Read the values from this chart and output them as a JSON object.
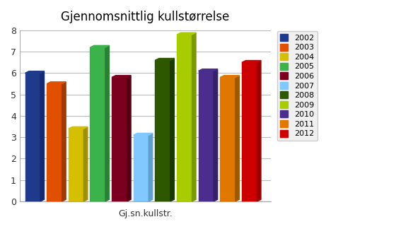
{
  "title": "Gjennomsnittlig kullstørrelse",
  "xlabel": "Gj.sn.kullstr.",
  "years": [
    2002,
    2003,
    2004,
    2005,
    2006,
    2007,
    2008,
    2009,
    2010,
    2011,
    2012
  ],
  "values": [
    6.0,
    5.5,
    3.4,
    7.2,
    5.8,
    3.1,
    6.6,
    7.8,
    6.1,
    5.8,
    6.5
  ],
  "colors": [
    "#1F3A8A",
    "#E05000",
    "#D4C000",
    "#3CB34A",
    "#7B0020",
    "#80C8FF",
    "#2E5800",
    "#A8CC00",
    "#4B2D8E",
    "#E07800",
    "#CC0000"
  ],
  "dark_colors": [
    "#152970",
    "#A03A00",
    "#A09000",
    "#2A8034",
    "#550015",
    "#60A0D0",
    "#1A3800",
    "#7A9800",
    "#35206A",
    "#A05800",
    "#9A0000"
  ],
  "ylim": [
    0,
    8
  ],
  "yticks": [
    0,
    1,
    2,
    3,
    4,
    5,
    6,
    7,
    8
  ],
  "background_color": "#FFFFFF",
  "plot_bg_color": "#FFFFFF",
  "title_fontsize": 12,
  "xlabel_fontsize": 9,
  "bar_width": 0.7,
  "depth": 0.18
}
